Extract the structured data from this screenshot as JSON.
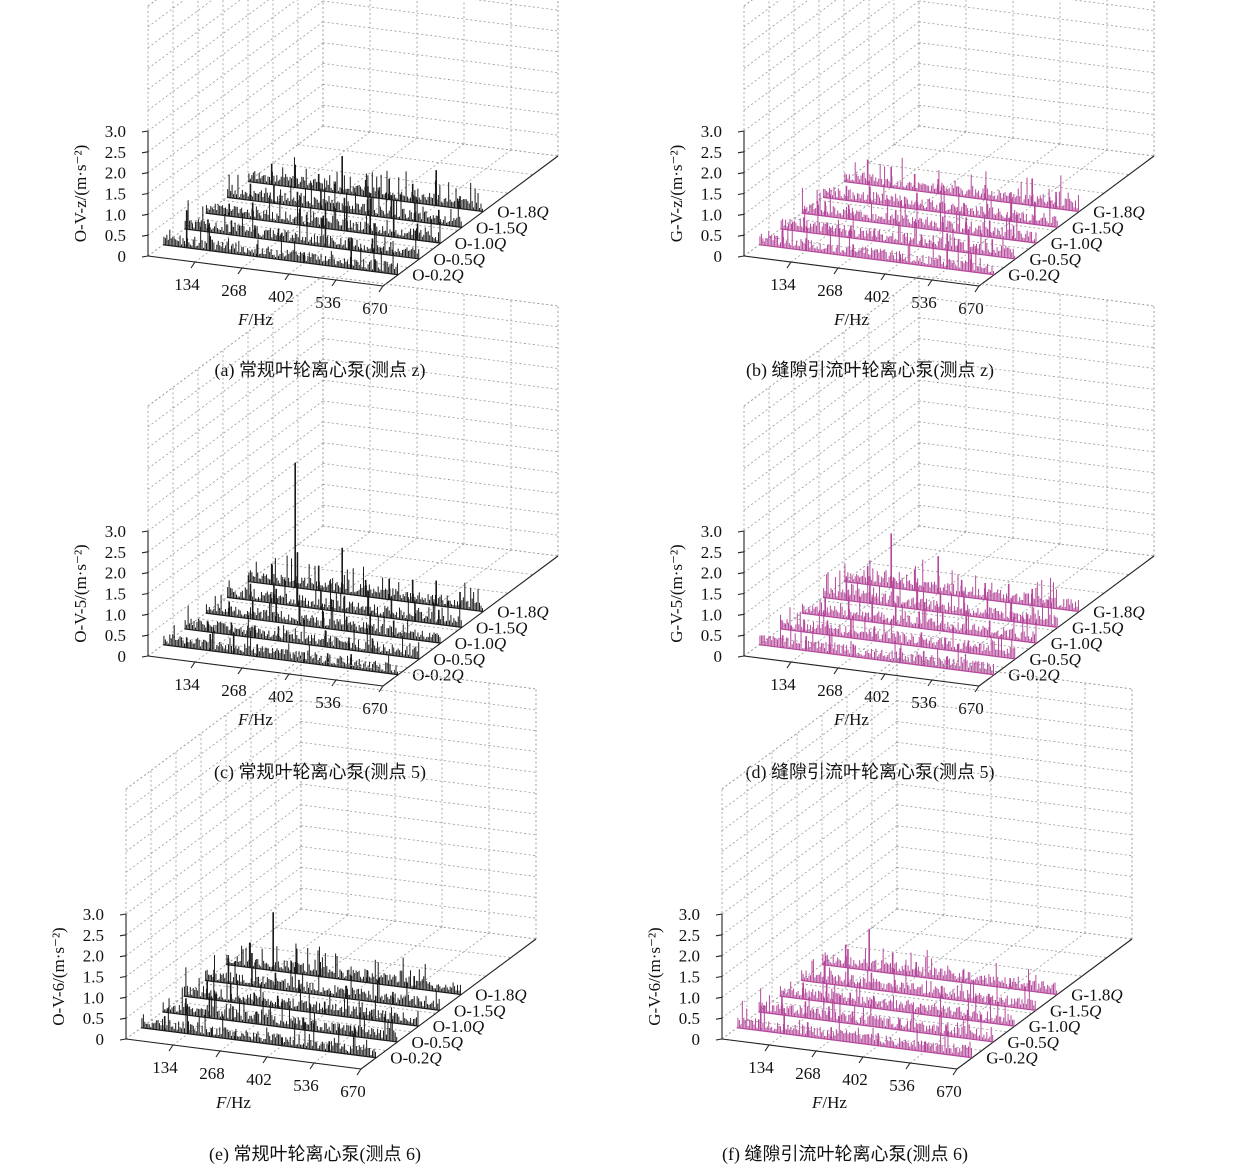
{
  "chart_data": [
    {
      "type": "3d-waterfall",
      "caption": "(a) 常规叶轮离心泵(测点 z)",
      "ylabel": "O-V-z/(m·s⁻²)",
      "xlabel": "F/Hz",
      "x_ticks": [
        "134",
        "268",
        "402",
        "536",
        "670"
      ],
      "y_ticks": [
        "0",
        "0.5",
        "1.0",
        "1.5",
        "2.0",
        "2.5",
        "3.0"
      ],
      "ylim": [
        0,
        3.0
      ],
      "xlim": [
        0,
        670
      ],
      "color": "#1a1a1a",
      "series": [
        {
          "name": "O-0.2Q",
          "peaks": [
            [
              67,
              0.9
            ],
            [
              134,
              0.35
            ],
            [
              268,
              0.3
            ],
            [
              402,
              0.25
            ],
            [
              536,
              0.75
            ],
            [
              604,
              0.3
            ]
          ]
        },
        {
          "name": "O-0.5Q",
          "peaks": [
            [
              67,
              0.3
            ],
            [
              134,
              0.35
            ],
            [
              201,
              0.3
            ],
            [
              268,
              0.3
            ],
            [
              402,
              1.05
            ],
            [
              469,
              0.3
            ],
            [
              536,
              0.35
            ]
          ]
        },
        {
          "name": "O-1.0Q",
          "peaks": [
            [
              67,
              0.3
            ],
            [
              134,
              0.4
            ],
            [
              268,
              0.4
            ],
            [
              335,
              0.3
            ],
            [
              402,
              0.6
            ],
            [
              469,
              0.85
            ],
            [
              536,
              0.9
            ],
            [
              604,
              0.4
            ]
          ]
        },
        {
          "name": "O-1.5Q",
          "peaks": [
            [
              67,
              0.4
            ],
            [
              134,
              0.45
            ],
            [
              201,
              0.35
            ],
            [
              268,
              0.5
            ],
            [
              335,
              0.35
            ],
            [
              402,
              0.7
            ],
            [
              469,
              0.55
            ],
            [
              536,
              0.6
            ],
            [
              604,
              0.35
            ]
          ]
        },
        {
          "name": "O-1.8Q",
          "peaks": [
            [
              67,
              0.5
            ],
            [
              134,
              0.55
            ],
            [
              201,
              0.4
            ],
            [
              268,
              0.9
            ],
            [
              335,
              0.4
            ],
            [
              402,
              0.5
            ],
            [
              469,
              0.45
            ],
            [
              536,
              0.85
            ],
            [
              604,
              0.3
            ]
          ]
        }
      ]
    },
    {
      "type": "3d-waterfall",
      "caption": "(b) 缝隙引流叶轮离心泵(测点 z)",
      "ylabel": "G-V-z/(m·s⁻²)",
      "xlabel": "F/Hz",
      "x_ticks": [
        "134",
        "268",
        "402",
        "536",
        "670"
      ],
      "y_ticks": [
        "0",
        "0.5",
        "1.0",
        "1.5",
        "2.0",
        "2.5",
        "3.0"
      ],
      "ylim": [
        0,
        3.0
      ],
      "xlim": [
        0,
        670
      ],
      "color": "#b5489a",
      "series": [
        {
          "name": "G-0.2Q",
          "peaks": [
            [
              67,
              0.45
            ],
            [
              134,
              0.3
            ],
            [
              268,
              0.3
            ],
            [
              402,
              0.2
            ],
            [
              536,
              0.85
            ],
            [
              604,
              0.3
            ]
          ]
        },
        {
          "name": "G-0.5Q",
          "peaks": [
            [
              67,
              0.35
            ],
            [
              134,
              0.3
            ],
            [
              201,
              0.3
            ],
            [
              268,
              0.3
            ],
            [
              402,
              0.3
            ],
            [
              536,
              0.55
            ],
            [
              604,
              0.4
            ]
          ]
        },
        {
          "name": "G-1.0Q",
          "peaks": [
            [
              67,
              0.35
            ],
            [
              134,
              0.35
            ],
            [
              268,
              0.35
            ],
            [
              402,
              0.35
            ],
            [
              469,
              0.4
            ],
            [
              536,
              0.4
            ],
            [
              604,
              0.35
            ]
          ]
        },
        {
          "name": "G-1.5Q",
          "peaks": [
            [
              67,
              0.35
            ],
            [
              134,
              0.4
            ],
            [
              268,
              0.4
            ],
            [
              402,
              0.3
            ],
            [
              469,
              0.35
            ],
            [
              536,
              0.7
            ],
            [
              604,
              0.55
            ]
          ]
        },
        {
          "name": "G-1.8Q",
          "peaks": [
            [
              67,
              0.6
            ],
            [
              134,
              0.5
            ],
            [
              201,
              0.4
            ],
            [
              268,
              0.35
            ],
            [
              402,
              0.35
            ],
            [
              536,
              0.65
            ],
            [
              604,
              0.4
            ]
          ]
        }
      ]
    },
    {
      "type": "3d-waterfall",
      "caption": "(c) 常规叶轮离心泵(测点 5)",
      "ylabel": "O-V-5/(m·s⁻²)",
      "xlabel": "F/Hz",
      "x_ticks": [
        "134",
        "268",
        "402",
        "536",
        "670"
      ],
      "y_ticks": [
        "0",
        "0.5",
        "1.0",
        "1.5",
        "2.0",
        "2.5",
        "3.0"
      ],
      "ylim": [
        0,
        3.0
      ],
      "xlim": [
        0,
        670
      ],
      "color": "#1a1a1a",
      "series": [
        {
          "name": "O-0.2Q",
          "peaks": [
            [
              67,
              0.25
            ],
            [
              134,
              0.4
            ],
            [
              201,
              0.5
            ],
            [
              268,
              0.3
            ],
            [
              402,
              0.25
            ],
            [
              469,
              0.3
            ],
            [
              536,
              0.35
            ]
          ]
        },
        {
          "name": "O-0.5Q",
          "peaks": [
            [
              67,
              0.25
            ],
            [
              134,
              0.3
            ],
            [
              201,
              0.3
            ],
            [
              268,
              0.35
            ],
            [
              402,
              0.4
            ],
            [
              469,
              0.3
            ],
            [
              536,
              0.35
            ]
          ]
        },
        {
          "name": "O-1.0Q",
          "peaks": [
            [
              67,
              0.35
            ],
            [
              134,
              0.45
            ],
            [
              201,
              0.8
            ],
            [
              268,
              0.45
            ],
            [
              335,
              0.4
            ],
            [
              402,
              0.35
            ],
            [
              469,
              0.5
            ],
            [
              536,
              0.4
            ]
          ]
        },
        {
          "name": "O-1.5Q",
          "peaks": [
            [
              67,
              0.4
            ],
            [
              134,
              0.5
            ],
            [
              201,
              1.3
            ],
            [
              268,
              0.5
            ],
            [
              335,
              0.4
            ],
            [
              402,
              0.6
            ],
            [
              469,
              0.5
            ],
            [
              536,
              0.5
            ],
            [
              604,
              0.35
            ]
          ]
        },
        {
          "name": "O-1.8Q",
          "peaks": [
            [
              67,
              0.5
            ],
            [
              134,
              3.0
            ],
            [
              201,
              0.6
            ],
            [
              268,
              1.1
            ],
            [
              335,
              0.4
            ],
            [
              402,
              0.5
            ],
            [
              469,
              0.55
            ],
            [
              536,
              0.6
            ],
            [
              604,
              0.4
            ]
          ]
        }
      ]
    },
    {
      "type": "3d-waterfall",
      "caption": "(d) 缝隙引流叶轮离心泵(测点 5)",
      "ylabel": "G-V-5/(m·s⁻²)",
      "xlabel": "F/Hz",
      "x_ticks": [
        "134",
        "268",
        "402",
        "536",
        "670"
      ],
      "y_ticks": [
        "0",
        "0.5",
        "1.0",
        "1.5",
        "2.0",
        "2.5",
        "3.0"
      ],
      "ylim": [
        0,
        3.0
      ],
      "xlim": [
        0,
        670
      ],
      "color": "#b5489a",
      "series": [
        {
          "name": "G-0.2Q",
          "peaks": [
            [
              67,
              0.3
            ],
            [
              134,
              0.35
            ],
            [
              201,
              0.45
            ],
            [
              268,
              0.3
            ],
            [
              402,
              0.35
            ],
            [
              469,
              0.35
            ],
            [
              536,
              0.3
            ]
          ]
        },
        {
          "name": "G-0.5Q",
          "peaks": [
            [
              67,
              0.3
            ],
            [
              134,
              0.35
            ],
            [
              201,
              0.45
            ],
            [
              268,
              0.35
            ],
            [
              402,
              0.35
            ],
            [
              469,
              0.3
            ],
            [
              536,
              0.3
            ]
          ]
        },
        {
          "name": "G-1.0Q",
          "peaks": [
            [
              67,
              0.45
            ],
            [
              134,
              0.55
            ],
            [
              201,
              0.6
            ],
            [
              268,
              0.5
            ],
            [
              335,
              0.4
            ],
            [
              402,
              0.45
            ],
            [
              469,
              0.55
            ],
            [
              536,
              0.4
            ]
          ]
        },
        {
          "name": "G-1.5Q",
          "peaks": [
            [
              67,
              0.55
            ],
            [
              134,
              0.65
            ],
            [
              201,
              0.7
            ],
            [
              268,
              0.65
            ],
            [
              335,
              0.45
            ],
            [
              402,
              0.55
            ],
            [
              469,
              0.5
            ],
            [
              536,
              0.45
            ]
          ]
        },
        {
          "name": "G-1.8Q",
          "peaks": [
            [
              67,
              0.45
            ],
            [
              134,
              1.3
            ],
            [
              201,
              0.5
            ],
            [
              268,
              0.9
            ],
            [
              335,
              0.4
            ],
            [
              402,
              0.4
            ],
            [
              469,
              0.45
            ],
            [
              536,
              0.4
            ]
          ]
        }
      ]
    },
    {
      "type": "3d-waterfall",
      "caption": "(e) 常规叶轮离心泵(测点 6)",
      "ylabel": "O-V-6/(m·s⁻²)",
      "xlabel": "F/Hz",
      "x_ticks": [
        "134",
        "268",
        "402",
        "536",
        "670"
      ],
      "y_ticks": [
        "0",
        "0.5",
        "1.0",
        "1.5",
        "2.0",
        "2.5",
        "3.0"
      ],
      "ylim": [
        0,
        3.0
      ],
      "xlim": [
        0,
        670
      ],
      "color": "#1a1a1a",
      "series": [
        {
          "name": "O-0.2Q",
          "peaks": [
            [
              67,
              0.35
            ],
            [
              134,
              0.3
            ],
            [
              201,
              0.2
            ],
            [
              268,
              0.2
            ],
            [
              402,
              0.2
            ],
            [
              536,
              0.25
            ]
          ]
        },
        {
          "name": "O-0.5Q",
          "peaks": [
            [
              67,
              0.4
            ],
            [
              134,
              0.5
            ],
            [
              201,
              0.35
            ],
            [
              268,
              0.3
            ],
            [
              402,
              0.3
            ],
            [
              536,
              0.25
            ]
          ]
        },
        {
          "name": "O-1.0Q",
          "peaks": [
            [
              67,
              0.45
            ],
            [
              134,
              0.45
            ],
            [
              201,
              0.3
            ],
            [
              268,
              0.3
            ],
            [
              402,
              0.3
            ],
            [
              536,
              0.25
            ]
          ]
        },
        {
          "name": "O-1.5Q",
          "peaks": [
            [
              67,
              0.6
            ],
            [
              134,
              0.8
            ],
            [
              201,
              0.4
            ],
            [
              268,
              0.3
            ],
            [
              402,
              0.3
            ],
            [
              536,
              0.3
            ]
          ]
        },
        {
          "name": "O-1.8Q",
          "peaks": [
            [
              67,
              0.6
            ],
            [
              134,
              1.4
            ],
            [
              201,
              0.6
            ],
            [
              268,
              0.35
            ],
            [
              402,
              0.3
            ],
            [
              536,
              0.3
            ]
          ]
        }
      ]
    },
    {
      "type": "3d-waterfall",
      "caption": "(f) 缝隙引流叶轮离心泵(测点 6)",
      "ylabel": "G-V-6/(m·s⁻²)",
      "xlabel": "F/Hz",
      "x_ticks": [
        "134",
        "268",
        "402",
        "536",
        "670"
      ],
      "y_ticks": [
        "0",
        "0.5",
        "1.0",
        "1.5",
        "2.0",
        "2.5",
        "3.0"
      ],
      "ylim": [
        0,
        3.0
      ],
      "xlim": [
        0,
        670
      ],
      "color": "#b5489a",
      "series": [
        {
          "name": "G-0.2Q",
          "peaks": [
            [
              67,
              0.6
            ],
            [
              134,
              0.6
            ],
            [
              201,
              0.35
            ],
            [
              268,
              0.3
            ],
            [
              402,
              0.3
            ],
            [
              536,
              0.25
            ]
          ]
        },
        {
          "name": "G-0.5Q",
          "peaks": [
            [
              67,
              0.45
            ],
            [
              134,
              0.4
            ],
            [
              201,
              0.35
            ],
            [
              268,
              0.3
            ],
            [
              402,
              0.25
            ],
            [
              536,
              0.25
            ]
          ]
        },
        {
          "name": "G-1.0Q",
          "peaks": [
            [
              67,
              0.4
            ],
            [
              134,
              0.45
            ],
            [
              201,
              0.3
            ],
            [
              268,
              0.3
            ],
            [
              402,
              0.25
            ],
            [
              536,
              0.25
            ]
          ]
        },
        {
          "name": "G-1.5Q",
          "peaks": [
            [
              67,
              0.5
            ],
            [
              134,
              0.9
            ],
            [
              201,
              0.4
            ],
            [
              268,
              0.3
            ],
            [
              402,
              0.3
            ],
            [
              536,
              0.25
            ]
          ]
        },
        {
          "name": "G-1.8Q",
          "peaks": [
            [
              67,
              0.55
            ],
            [
              134,
              1.0
            ],
            [
              201,
              0.5
            ],
            [
              268,
              0.35
            ],
            [
              402,
              0.3
            ],
            [
              536,
              0.25
            ]
          ]
        }
      ]
    }
  ]
}
